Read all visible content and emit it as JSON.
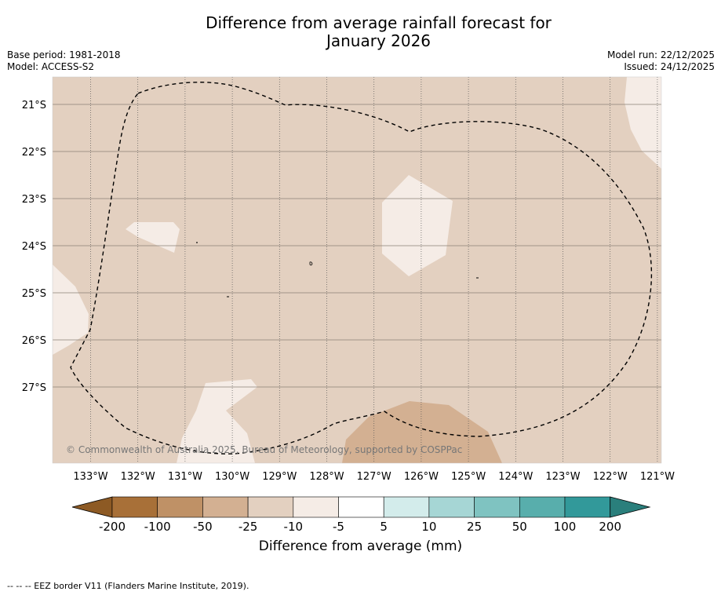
{
  "title_line1": "Difference from average rainfall forecast for",
  "title_line2": "January 2026",
  "base_period": "Base period: 1981-2018",
  "model": "Model: ACCESS-S2",
  "model_run": "Model run: 22/12/2025",
  "issued": "Issued: 24/12/2025",
  "copyright": "© Commonwealth of Australia 2025, Bureau of Meteorology, supported by COSPPac",
  "footer_note": "--  --  -- EEZ border V11 (Flanders Marine Institute, 2019).",
  "map": {
    "lat_labels": [
      "21°S",
      "22°S",
      "23°S",
      "24°S",
      "25°S",
      "26°S",
      "27°S"
    ],
    "lon_labels": [
      "133°W",
      "132°W",
      "131°W",
      "130°W",
      "129°W",
      "128°W",
      "127°W",
      "126°W",
      "125°W",
      "124°W",
      "123°W",
      "122°W",
      "121°W"
    ],
    "background_category": "-25 to -10",
    "background_color": "#e3d0c0"
  },
  "colorbar": {
    "title": "Difference from average (mm)",
    "ticks": [
      "-200",
      "-100",
      "-50",
      "-25",
      "-10",
      "-5",
      "5",
      "10",
      "25",
      "50",
      "100",
      "200"
    ],
    "colors": [
      "#a87038",
      "#bf9166",
      "#d3b092",
      "#e3d0c0",
      "#f5ece6",
      "#ffffff",
      "#d3eceb",
      "#a6d6d5",
      "#7fc3c1",
      "#58aeac",
      "#32999a"
    ],
    "under_color": "#8d5a24",
    "over_color": "#2a7f7c"
  }
}
